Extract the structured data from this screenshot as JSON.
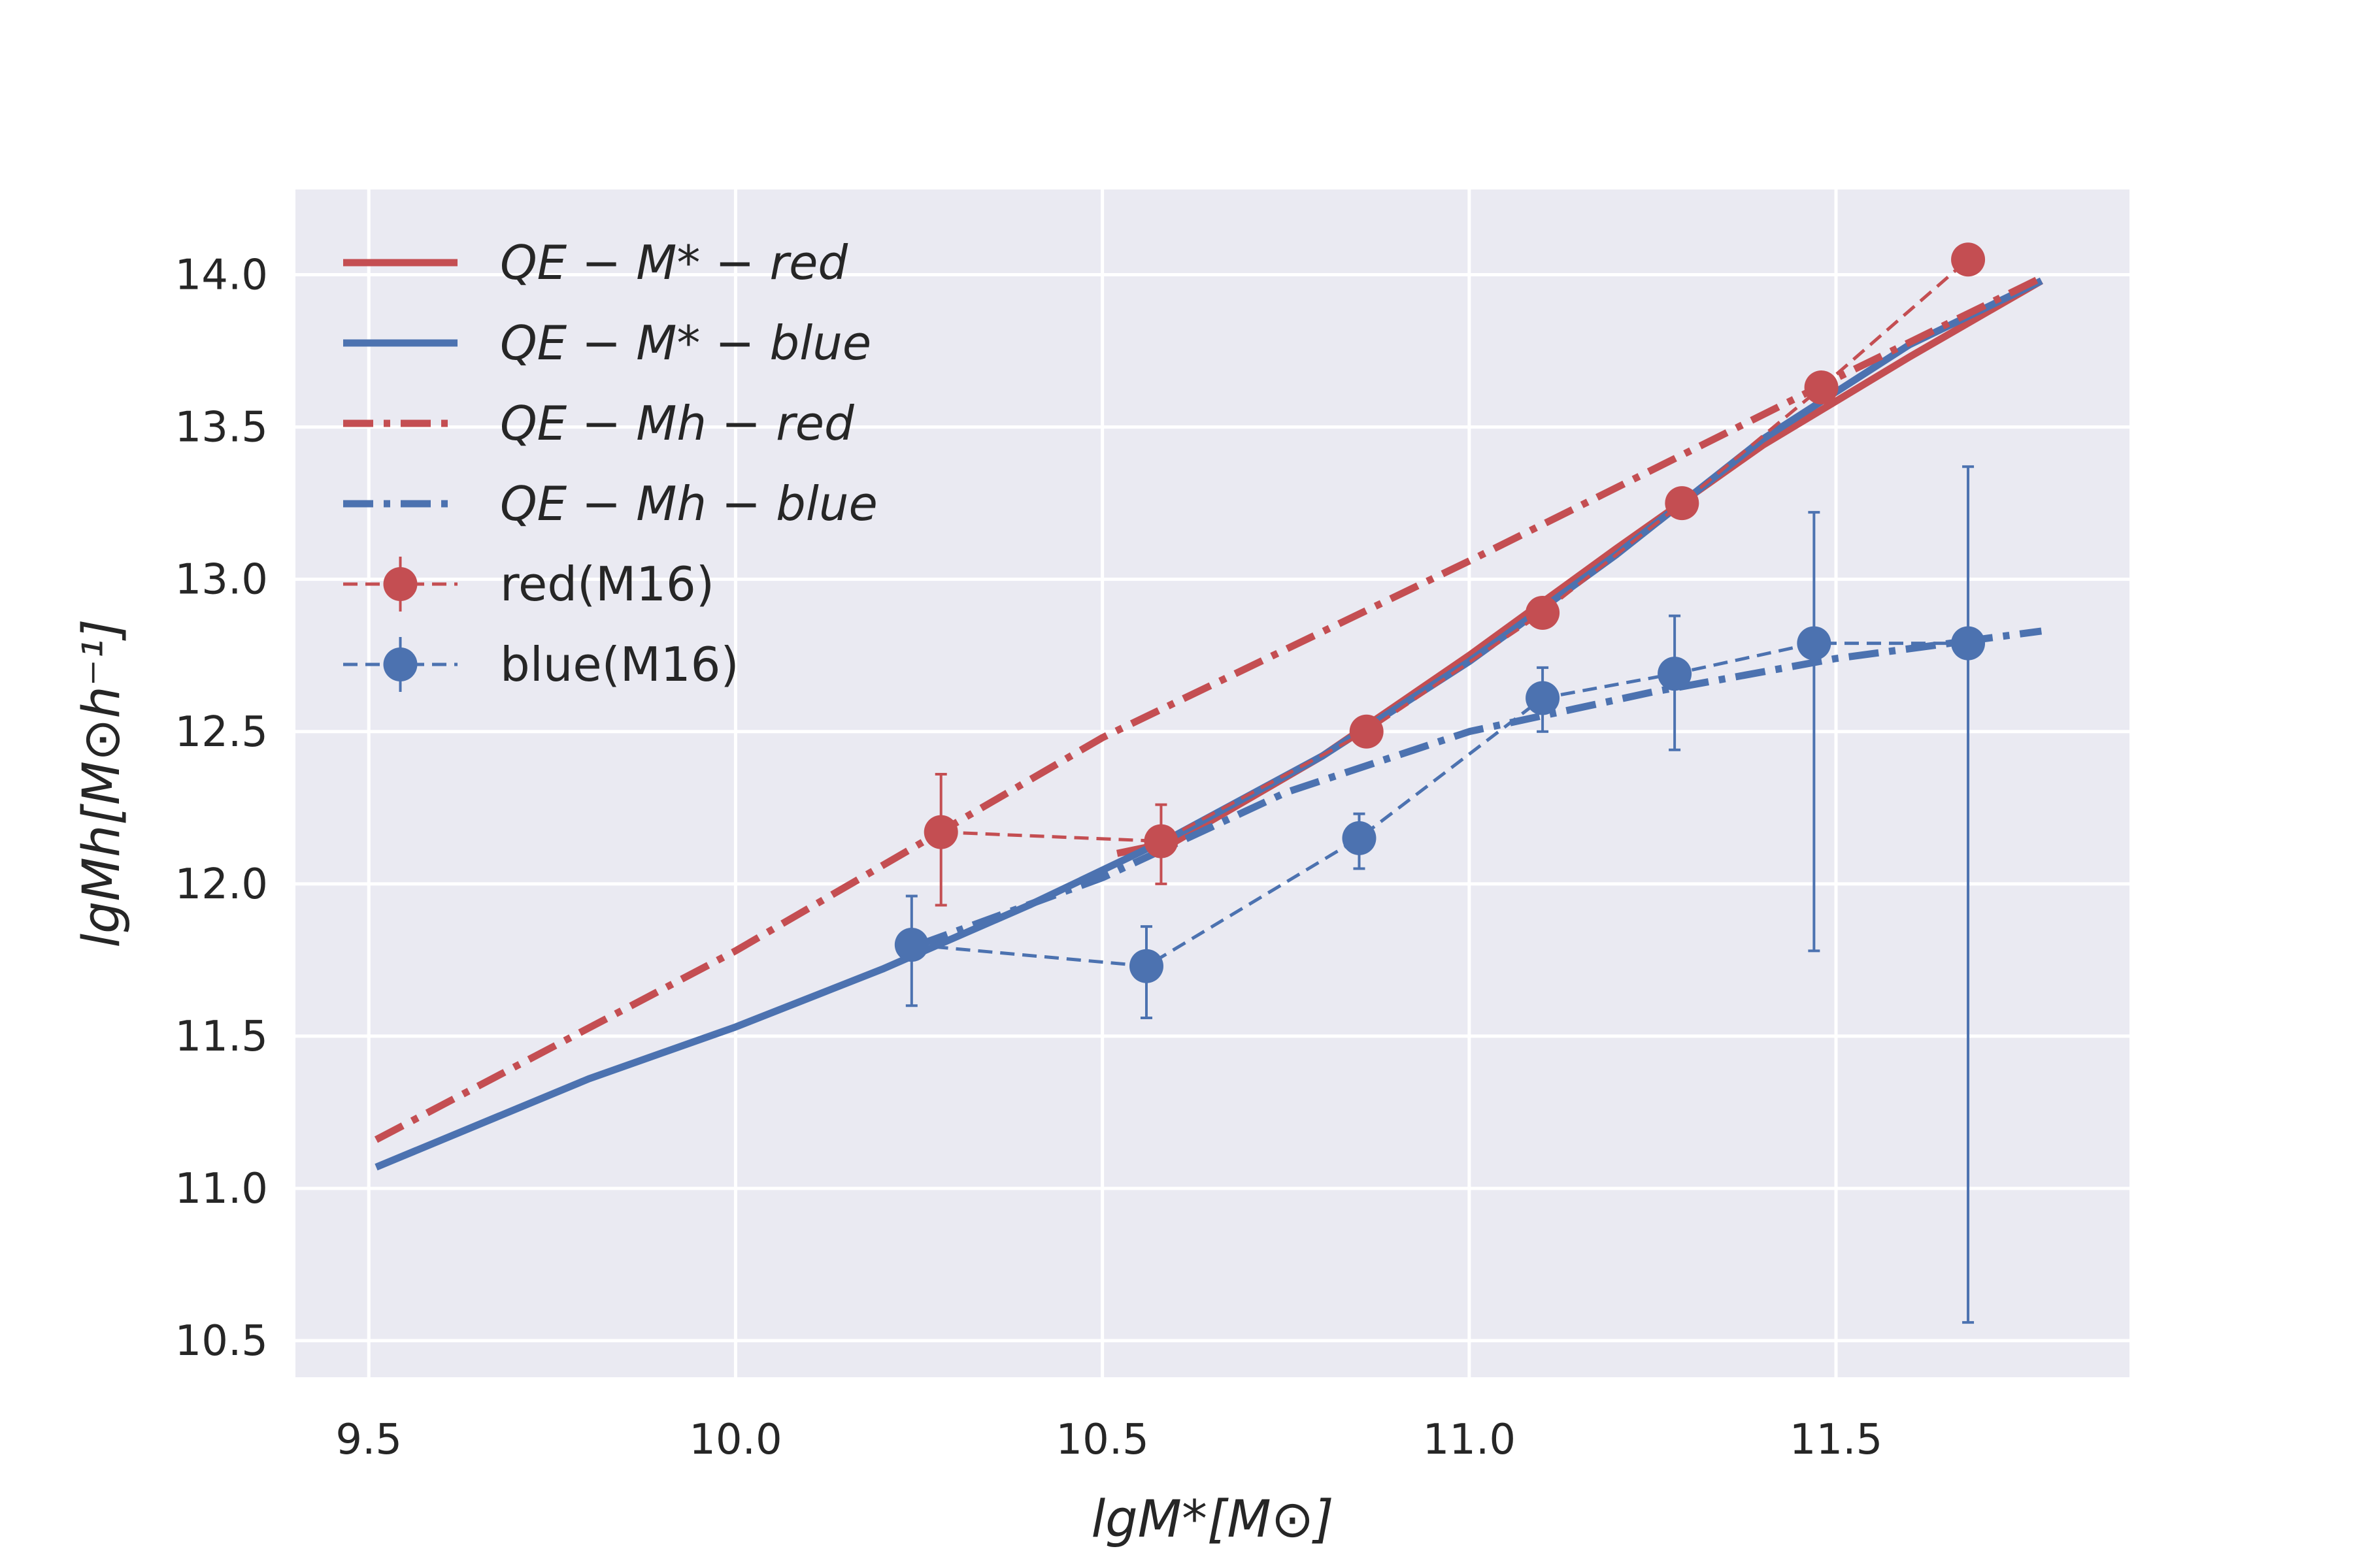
{
  "chart_data": {
    "type": "line",
    "xlabel": "lgM*[M⊙]",
    "ylabel": "lgMh[M⊙h⁻¹]",
    "xlim": [
      9.4,
      11.9
    ],
    "ylim": [
      10.38,
      14.28
    ],
    "xticks": [
      9.5,
      10.0,
      10.5,
      11.0,
      11.5
    ],
    "xtick_labels": [
      "9.5",
      "10.0",
      "10.5",
      "11.0",
      "11.5"
    ],
    "yticks": [
      10.5,
      11.0,
      11.5,
      12.0,
      12.5,
      13.0,
      13.5,
      14.0
    ],
    "ytick_labels": [
      "10.5",
      "11.0",
      "11.5",
      "12.0",
      "12.5",
      "13.0",
      "13.5",
      "14.0"
    ],
    "grid": true,
    "legend_position": "top-left",
    "colors": {
      "red": "#c44e52",
      "blue": "#4c72b0",
      "background": "#eaeaf2",
      "grid": "#ffffff"
    },
    "series": [
      {
        "name": "QE − M* − red",
        "style": "solid",
        "color": "#c44e52",
        "x": [
          10.52,
          10.6,
          10.8,
          11.0,
          11.2,
          11.4,
          11.6,
          11.78
        ],
        "y": [
          12.1,
          12.14,
          12.42,
          12.75,
          13.1,
          13.44,
          13.73,
          13.98
        ]
      },
      {
        "name": "QE − M* − blue",
        "style": "solid",
        "color": "#4c72b0",
        "x": [
          9.51,
          9.6,
          9.8,
          10.0,
          10.2,
          10.4,
          10.6,
          10.8,
          11.0,
          11.2,
          11.4,
          11.6,
          11.78
        ],
        "y": [
          11.07,
          11.16,
          11.36,
          11.53,
          11.72,
          11.93,
          12.16,
          12.42,
          12.73,
          13.08,
          13.46,
          13.77,
          13.98
        ]
      },
      {
        "name": "QE − Mh − red",
        "style": "dashdot",
        "color": "#c44e52",
        "x": [
          9.51,
          10.0,
          10.5,
          11.0,
          11.5,
          11.78
        ],
        "y": [
          11.16,
          11.78,
          12.48,
          13.06,
          13.66,
          13.99
        ]
      },
      {
        "name": "QE − Mh − blue",
        "style": "dashdot",
        "color": "#4c72b0",
        "x": [
          10.25,
          10.5,
          10.75,
          11.0,
          11.25,
          11.5,
          11.78
        ],
        "y": [
          11.8,
          12.02,
          12.3,
          12.5,
          12.63,
          12.74,
          12.83
        ]
      },
      {
        "name": "red(M16)",
        "style": "markers-dashed",
        "color": "#c44e52",
        "x": [
          10.28,
          10.58,
          10.86,
          11.1,
          11.29,
          11.48,
          11.68
        ],
        "y": [
          12.17,
          12.14,
          12.5,
          12.89,
          13.25,
          13.63,
          14.05
        ],
        "yerr_low": [
          0.24,
          0.14,
          0.0,
          0.0,
          0.0,
          0.0,
          0.0
        ],
        "yerr_high": [
          0.19,
          0.12,
          0.0,
          0.0,
          0.0,
          0.0,
          0.0
        ]
      },
      {
        "name": "blue(M16)",
        "style": "markers-dashed",
        "color": "#4c72b0",
        "x": [
          10.24,
          10.56,
          10.85,
          11.1,
          11.28,
          11.47,
          11.68
        ],
        "y": [
          11.8,
          11.73,
          12.15,
          12.61,
          12.69,
          12.79,
          12.79
        ],
        "yerr_low": [
          0.2,
          0.17,
          0.1,
          0.11,
          0.25,
          1.01,
          2.23
        ],
        "yerr_high": [
          0.16,
          0.13,
          0.08,
          0.1,
          0.19,
          0.43,
          0.58
        ]
      }
    ]
  }
}
